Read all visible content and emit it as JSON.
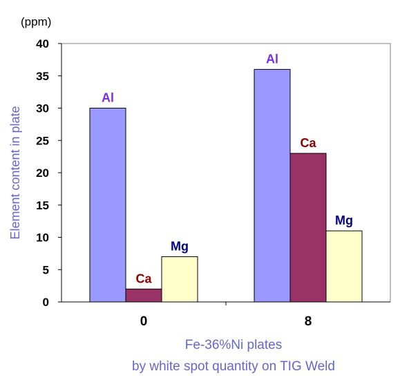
{
  "chart_data": {
    "type": "bar",
    "unit_label": "(ppm)",
    "ylabel": "Element content in plate",
    "xlabel_lines": [
      "Fe-36%Ni plates",
      "by white spot quantity on TIG Weld"
    ],
    "categories": [
      "0",
      "8"
    ],
    "ylim": [
      0,
      40
    ],
    "yticks": [
      0,
      5,
      10,
      15,
      20,
      25,
      30,
      35,
      40
    ],
    "grid": false,
    "legend": "none",
    "series": [
      {
        "name": "Al",
        "values": [
          30,
          36
        ],
        "color": "#9999ff",
        "label_color": "#7b2fe0"
      },
      {
        "name": "Ca",
        "values": [
          2,
          23
        ],
        "color": "#993366",
        "label_color": "#8b0000"
      },
      {
        "name": "Mg",
        "values": [
          7,
          11
        ],
        "color": "#ffffcc",
        "label_color": "#000080"
      }
    ],
    "label_color": "#6666cc"
  }
}
